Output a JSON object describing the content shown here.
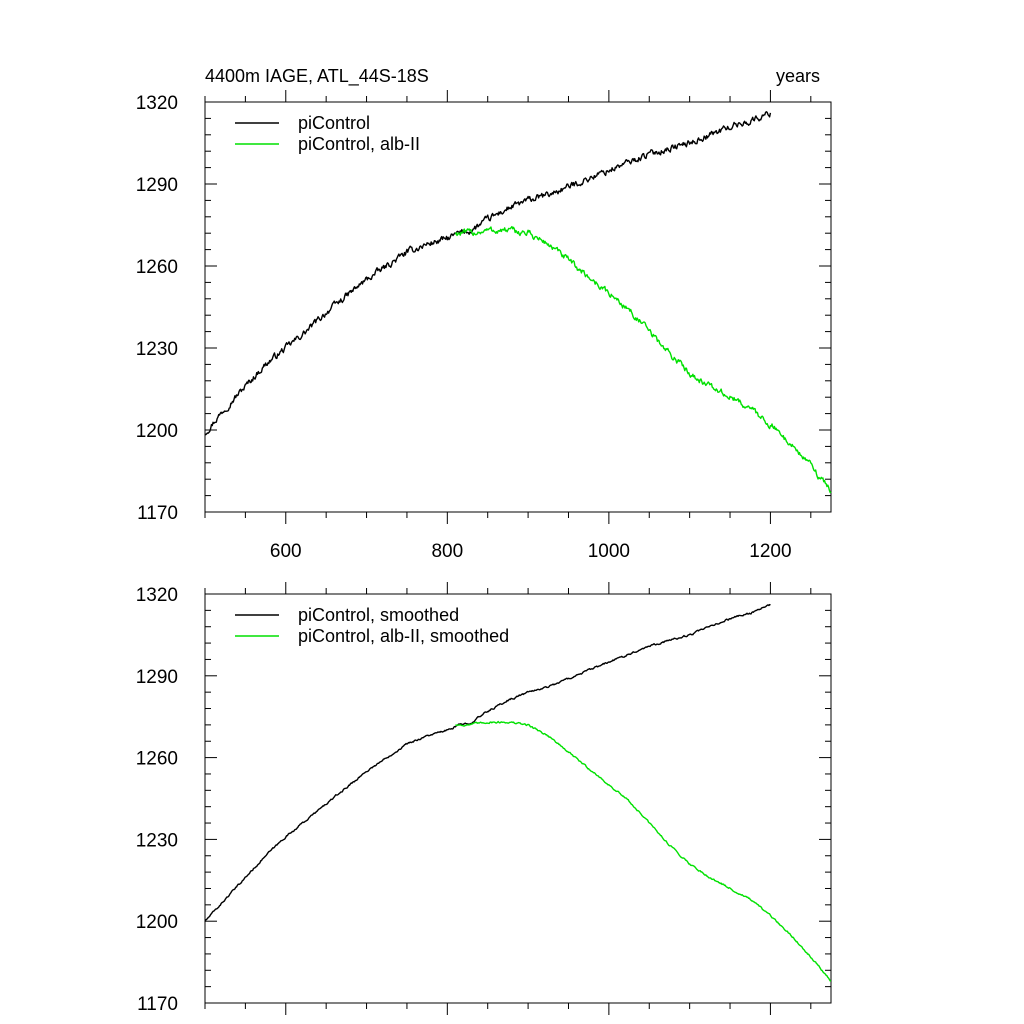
{
  "header": {
    "left_title": "4400m IAGE, ATL_44S-18S",
    "right_title": "years"
  },
  "colors": {
    "picontrol": "#000000",
    "alb_ii": "#00e000",
    "axis": "#000000"
  },
  "chart_data": [
    {
      "type": "line",
      "title": "4400m IAGE, ATL_44S-18S",
      "right_label": "years",
      "xlim": [
        500,
        1275
      ],
      "ylim": [
        1170,
        1320
      ],
      "x_ticks": [
        600,
        800,
        1000,
        1200
      ],
      "x_tick_labels": [
        "600",
        "800",
        "1000",
        "1200"
      ],
      "y_ticks": [
        1170,
        1200,
        1230,
        1260,
        1290,
        1320
      ],
      "y_tick_labels": [
        "1170",
        "1200",
        "1230",
        "1260",
        "1290",
        "1320"
      ],
      "legend_position": "top-left",
      "noise": 1.2,
      "series": [
        {
          "name": "piControl",
          "color": "#000000",
          "x": [
            500,
            525,
            550,
            575,
            600,
            625,
            650,
            675,
            700,
            725,
            750,
            775,
            800,
            815,
            830,
            850,
            875,
            900,
            925,
            950,
            975,
            1000,
            1025,
            1050,
            1075,
            1100,
            1125,
            1150,
            1175,
            1200
          ],
          "y": [
            1199,
            1208,
            1216,
            1224,
            1230,
            1236,
            1243,
            1249,
            1255,
            1260,
            1265,
            1268,
            1270,
            1272,
            1273,
            1277,
            1281,
            1284,
            1286,
            1289,
            1292,
            1295,
            1298,
            1301,
            1303,
            1305,
            1308,
            1311,
            1313,
            1316
          ]
        },
        {
          "name": "piControl, alb-II",
          "color": "#00e000",
          "x": [
            810,
            825,
            850,
            875,
            900,
            925,
            950,
            975,
            1000,
            1025,
            1050,
            1075,
            1100,
            1125,
            1150,
            1175,
            1200,
            1225,
            1250,
            1275
          ],
          "y": [
            1272,
            1272,
            1273,
            1273,
            1272,
            1268,
            1262,
            1256,
            1250,
            1244,
            1236,
            1228,
            1221,
            1216,
            1212,
            1208,
            1202,
            1195,
            1187,
            1178
          ]
        }
      ]
    },
    {
      "type": "line",
      "xlim": [
        500,
        1275
      ],
      "ylim": [
        1170,
        1320
      ],
      "x_ticks": [
        600,
        800,
        1000,
        1200
      ],
      "y_ticks": [
        1170,
        1200,
        1230,
        1260,
        1290,
        1320
      ],
      "y_tick_labels": [
        "1170",
        "1200",
        "1230",
        "1260",
        "1290",
        "1320"
      ],
      "legend_position": "top-left",
      "noise": 0.35,
      "series": [
        {
          "name": "piControl, smoothed",
          "color": "#000000",
          "x": [
            500,
            525,
            550,
            575,
            600,
            625,
            650,
            675,
            700,
            725,
            750,
            775,
            800,
            815,
            830,
            850,
            875,
            900,
            925,
            950,
            975,
            1000,
            1025,
            1050,
            1075,
            1100,
            1125,
            1150,
            1175,
            1200
          ],
          "y": [
            1200,
            1208,
            1216,
            1224,
            1231,
            1237,
            1243,
            1249,
            1255,
            1260,
            1265,
            1268,
            1270,
            1272,
            1273,
            1277,
            1281,
            1284,
            1286,
            1289,
            1292,
            1295,
            1298,
            1301,
            1303,
            1305,
            1308,
            1311,
            1313,
            1316
          ]
        },
        {
          "name": "piControl, alb-II, smoothed",
          "color": "#00e000",
          "x": [
            810,
            825,
            850,
            875,
            900,
            925,
            950,
            975,
            1000,
            1025,
            1050,
            1075,
            1100,
            1125,
            1150,
            1175,
            1200,
            1225,
            1250,
            1275
          ],
          "y": [
            1272,
            1272,
            1273,
            1273,
            1272,
            1268,
            1262,
            1256,
            1250,
            1244,
            1236,
            1228,
            1221,
            1216,
            1212,
            1208,
            1202,
            1195,
            1187,
            1178
          ]
        }
      ]
    }
  ]
}
